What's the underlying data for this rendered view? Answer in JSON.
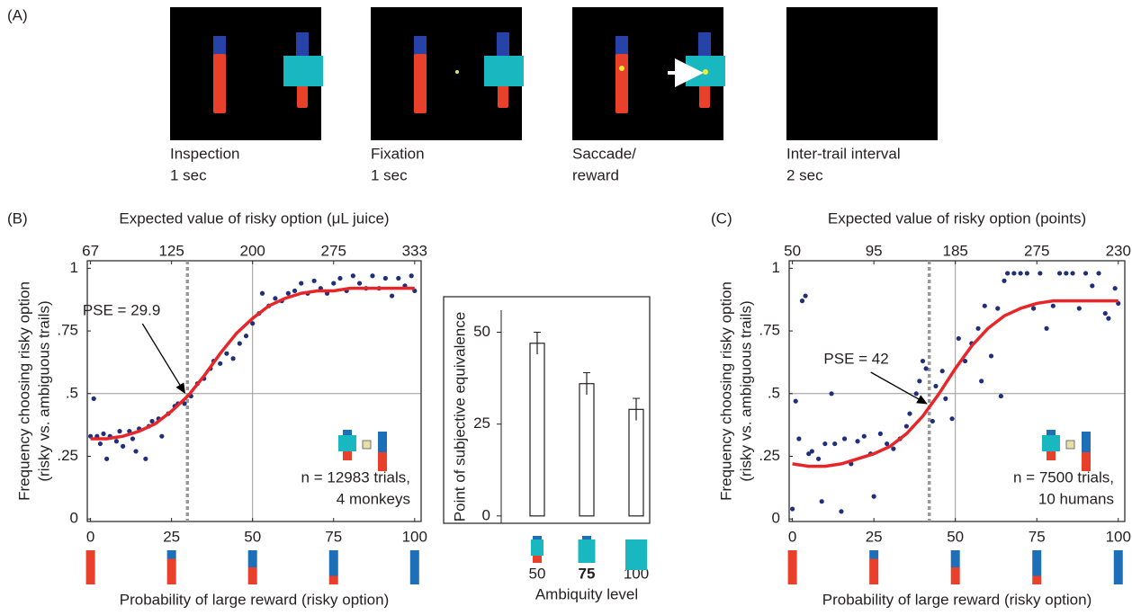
{
  "panel_a": {
    "label": "(A)",
    "frames": [
      {
        "caption": [
          "Inspection",
          "1 sec"
        ]
      },
      {
        "caption": [
          "Fixation",
          "1 sec"
        ]
      },
      {
        "caption": [
          "Saccade/",
          "reward"
        ]
      },
      {
        "caption": [
          "Inter-trail interval",
          "2 sec"
        ]
      }
    ]
  },
  "chart_data": [
    {
      "type": "scatter",
      "panel_label": "(B)",
      "x_label": "Probability of large reward (risky option)",
      "x2_label": "Expected value of risky option (μL juice)",
      "y_label": [
        "Frequency choosing risky option",
        "(risky vs. ambiguous trails)"
      ],
      "xlim": [
        -1,
        102
      ],
      "ylim": [
        -0.01,
        1.03
      ],
      "xticks": [
        0,
        25,
        50,
        75,
        100
      ],
      "x2ticks": [
        {
          "value": 0,
          "label": "67"
        },
        {
          "value": 25,
          "label": "125"
        },
        {
          "value": 50,
          "label": "200"
        },
        {
          "value": 75,
          "label": "275"
        },
        {
          "value": 100,
          "label": "333"
        }
      ],
      "yticks": [
        0,
        {
          "value": 0.25,
          "label": ".25"
        },
        {
          "value": 0.5,
          "label": ".5"
        },
        {
          "value": 0.75,
          "label": ".75"
        },
        1
      ],
      "grid_x": [
        50
      ],
      "grid_y": [
        0.5
      ],
      "pse": {
        "value": 29.9,
        "label": "PSE = 29.9"
      },
      "note": [
        "n = 12983 trials,",
        "4 monkeys"
      ],
      "series": [
        {
          "kind": "scatter",
          "color": "#1f2f7a",
          "x": [
            0,
            1,
            2,
            3,
            4,
            5,
            6,
            8,
            9,
            10,
            12,
            13,
            14,
            15,
            17,
            18,
            19,
            21,
            22,
            24,
            26,
            27,
            29,
            31,
            33,
            35,
            37,
            38,
            40,
            42,
            44,
            46,
            48,
            50,
            52,
            53,
            55,
            57,
            59,
            61,
            63,
            65,
            67,
            69,
            71,
            73,
            75,
            77,
            79,
            81,
            83,
            85,
            87,
            89,
            91,
            93,
            95,
            97,
            99,
            100
          ],
          "values": [
            0.33,
            0.48,
            0.33,
            0.3,
            0.34,
            0.24,
            0.33,
            0.31,
            0.35,
            0.29,
            0.35,
            0.32,
            0.27,
            0.36,
            0.24,
            0.37,
            0.39,
            0.4,
            0.33,
            0.42,
            0.45,
            0.46,
            0.46,
            0.49,
            0.54,
            0.56,
            0.6,
            0.63,
            0.62,
            0.66,
            0.64,
            0.7,
            0.73,
            0.78,
            0.82,
            0.9,
            0.85,
            0.88,
            0.87,
            0.9,
            0.91,
            0.94,
            0.9,
            0.95,
            0.92,
            0.9,
            0.94,
            0.96,
            0.91,
            0.97,
            0.94,
            0.92,
            0.97,
            0.92,
            0.96,
            0.89,
            0.96,
            0.93,
            0.97,
            0.91
          ]
        },
        {
          "kind": "line",
          "color": "#e8262a",
          "x": [
            0,
            5,
            10,
            15,
            20,
            25,
            30,
            35,
            40,
            45,
            50,
            55,
            60,
            65,
            70,
            75,
            80,
            85,
            90,
            95,
            100
          ],
          "values": [
            0.32,
            0.32,
            0.33,
            0.35,
            0.38,
            0.43,
            0.49,
            0.57,
            0.66,
            0.74,
            0.8,
            0.85,
            0.88,
            0.9,
            0.91,
            0.91,
            0.92,
            0.92,
            0.92,
            0.92,
            0.92
          ]
        }
      ]
    },
    {
      "type": "bar",
      "x_label": "Ambiquity level",
      "y_label": "Point of subjective equivalence",
      "categories": [
        "50",
        "75",
        "100"
      ],
      "values": [
        47,
        36,
        29
      ],
      "errors": [
        3,
        3,
        3
      ],
      "ylim": [
        -2,
        56
      ],
      "yticks": [
        0,
        25,
        50
      ]
    },
    {
      "type": "scatter",
      "panel_label": "(C)",
      "x_label": "Probability of large reward (risky option)",
      "x2_label": "Expected value of risky option (points)",
      "y_label": [
        "Frequency choosing risky option",
        "(risky vs. ambiguous trails)"
      ],
      "xlim": [
        -1,
        102
      ],
      "ylim": [
        -0.01,
        1.03
      ],
      "xticks": [
        0,
        25,
        50,
        75,
        100
      ],
      "x2ticks": [
        {
          "value": 0,
          "label": "50"
        },
        {
          "value": 25,
          "label": "95"
        },
        {
          "value": 50,
          "label": "185"
        },
        {
          "value": 75,
          "label": "275"
        },
        {
          "value": 100,
          "label": "230"
        }
      ],
      "yticks": [
        0,
        {
          "value": 0.25,
          "label": ".25"
        },
        {
          "value": 0.5,
          "label": ".5"
        },
        {
          "value": 0.75,
          "label": ".75"
        },
        1
      ],
      "grid_x": [
        50
      ],
      "grid_y": [
        0.5
      ],
      "pse": {
        "value": 42,
        "label": "PSE = 42"
      },
      "note": [
        "n = 7500 trials,",
        "10 humans"
      ],
      "series": [
        {
          "kind": "scatter",
          "color": "#1f2f7a",
          "x": [
            0,
            1,
            2,
            3,
            4,
            5,
            6,
            8,
            9,
            10,
            12,
            13,
            15,
            16,
            18,
            20,
            22,
            24,
            25,
            27,
            29,
            31,
            33,
            35,
            36,
            38,
            39,
            40,
            41,
            43,
            44,
            46,
            47,
            49,
            51,
            53,
            55,
            57,
            58,
            59,
            61,
            63,
            64,
            65,
            66,
            68,
            70,
            72,
            74,
            76,
            78,
            80,
            82,
            84,
            86,
            88,
            90,
            92,
            94,
            96,
            97,
            99,
            100
          ],
          "values": [
            0.04,
            0.47,
            0.32,
            0.87,
            0.89,
            0.26,
            0.27,
            0.24,
            0.07,
            0.3,
            0.5,
            0.3,
            0.03,
            0.32,
            0.22,
            0.31,
            0.33,
            0.26,
            0.09,
            0.34,
            0.3,
            0.28,
            0.32,
            0.37,
            0.42,
            0.5,
            0.55,
            0.63,
            0.6,
            0.39,
            0.53,
            0.59,
            0.48,
            0.4,
            0.72,
            0.63,
            0.7,
            0.76,
            0.55,
            0.85,
            0.65,
            0.84,
            0.49,
            0.95,
            0.98,
            0.98,
            0.98,
            0.98,
            0.84,
            0.98,
            0.76,
            0.85,
            0.98,
            0.98,
            0.98,
            0.84,
            0.98,
            0.93,
            0.98,
            0.82,
            0.8,
            0.92,
            0.86
          ]
        },
        {
          "kind": "line",
          "color": "#e8262a",
          "x": [
            0,
            5,
            10,
            15,
            20,
            25,
            30,
            35,
            40,
            45,
            50,
            55,
            60,
            65,
            70,
            75,
            80,
            85,
            90,
            95,
            100
          ],
          "values": [
            0.22,
            0.21,
            0.21,
            0.22,
            0.24,
            0.26,
            0.29,
            0.34,
            0.41,
            0.5,
            0.6,
            0.69,
            0.76,
            0.81,
            0.84,
            0.86,
            0.87,
            0.87,
            0.87,
            0.87,
            0.87
          ]
        }
      ]
    }
  ]
}
